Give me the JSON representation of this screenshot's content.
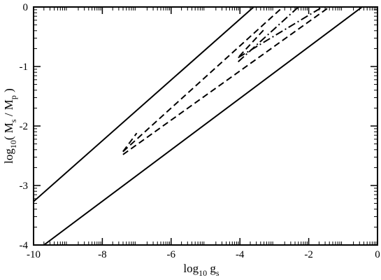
{
  "chart_data": {
    "type": "line",
    "xlim": [
      -10,
      0
    ],
    "ylim": [
      -4,
      0
    ],
    "x_major_ticks": [
      -10,
      -8,
      -6,
      -4,
      -2,
      0
    ],
    "y_major_ticks": [
      -4,
      -3,
      -2,
      -1,
      0
    ],
    "x_tick_labels": [
      "-10",
      "-8",
      "-6",
      "-4",
      "-2",
      "0"
    ],
    "y_tick_labels": [
      "-4",
      "-3",
      "-2",
      "-1",
      "0"
    ],
    "x_minor": "log-decade",
    "y_minor": "log-decade",
    "grid": false,
    "legend": "none",
    "xlabel": {
      "main": "log",
      "sub": "10",
      "text": " g",
      "text_sub": "s"
    },
    "ylabel": {
      "main": "log",
      "sub": "10",
      "text1": "( M",
      "sub1": "s",
      "mid": " / M",
      "sub2": "p",
      "close": " )"
    },
    "series": [
      {
        "style": "solid",
        "x": [
          -10,
          -3.6
        ],
        "y": [
          -3.27,
          0
        ]
      },
      {
        "style": "solid",
        "x": [
          -9.7,
          -0.45
        ],
        "y": [
          -4,
          0
        ]
      },
      {
        "style": "dashed",
        "x": [
          -7.4,
          -2.75
        ],
        "y": [
          -2.43,
          0
        ]
      },
      {
        "style": "dashed",
        "x": [
          -7.4,
          -1.4
        ],
        "y": [
          -2.48,
          0
        ]
      },
      {
        "style": "dashed",
        "x": [
          -7.4,
          -7.0
        ],
        "y": [
          -2.43,
          -2.12
        ]
      },
      {
        "style": "dashed",
        "x": [
          -4.02,
          -3.3
        ],
        "y": [
          -0.83,
          -0.38
        ]
      },
      {
        "style": "dashdot",
        "x": [
          -4.05,
          -2.3
        ],
        "y": [
          -0.92,
          0
        ]
      },
      {
        "style": "dashdot",
        "x": [
          -4.05,
          -1.6
        ],
        "y": [
          -0.85,
          0
        ]
      }
    ]
  }
}
